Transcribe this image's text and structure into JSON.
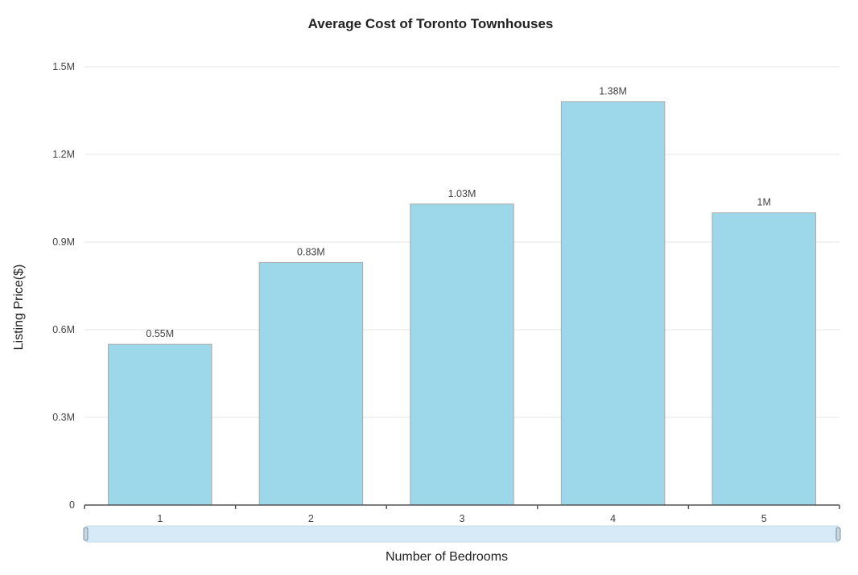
{
  "chart_data": {
    "type": "bar",
    "title": "Average Cost of Toronto Townhouses",
    "xlabel": "Number of Bedrooms",
    "ylabel": "Listing Price($)",
    "categories": [
      "1",
      "2",
      "3",
      "4",
      "5"
    ],
    "series": [
      {
        "values": [
          550000,
          830000,
          1030000,
          1380000,
          1000000
        ],
        "labels": [
          "0.55M",
          "0.83M",
          "1.03M",
          "1.38M",
          "1M"
        ]
      }
    ],
    "ylim": [
      0,
      1500000
    ],
    "yticks": [
      0,
      300000,
      600000,
      900000,
      1200000,
      1500000
    ],
    "ytick_labels": [
      "0",
      "0.3M",
      "0.6M",
      "0.9M",
      "1.2M",
      "1.5M"
    ],
    "grid": true,
    "legend": "none",
    "bar_color": "#9dd8ea",
    "bar_border_color": "#a9a9a9",
    "scrollbar_color": "#d6eaf7"
  }
}
